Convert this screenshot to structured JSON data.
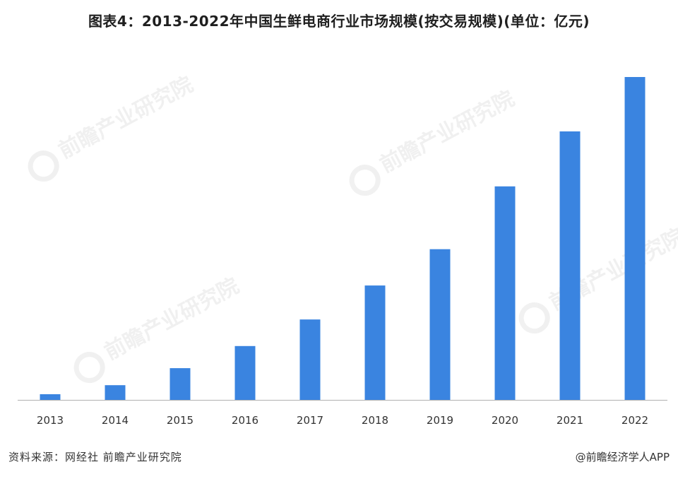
{
  "title": "图表4：2013-2022年中国生鲜电商行业市场规模(按交易规模)(单位：亿元)",
  "watermark": {
    "text": "前瞻产业研究院"
  },
  "footer": {
    "source": "资料来源：网经社 前瞻产业研究院",
    "credit": "@前瞻经济学人APP"
  },
  "colors": {
    "bar": "#3a84e0",
    "axis": "#b0b0b0"
  },
  "chart_data": {
    "type": "bar",
    "title": "图表4：2013-2022年中国生鲜电商行业市场规模(按交易规模)(单位：亿元)",
    "xlabel": "",
    "ylabel": "",
    "categories": [
      "2013",
      "2014",
      "2015",
      "2016",
      "2017",
      "2018",
      "2019",
      "2020",
      "2021",
      "2022"
    ],
    "values": [
      100,
      260,
      560,
      950,
      1420,
      2020,
      2660,
      3770,
      4740,
      5700
    ],
    "ylim": [
      0,
      5900
    ],
    "grid": false,
    "legend": "none"
  }
}
